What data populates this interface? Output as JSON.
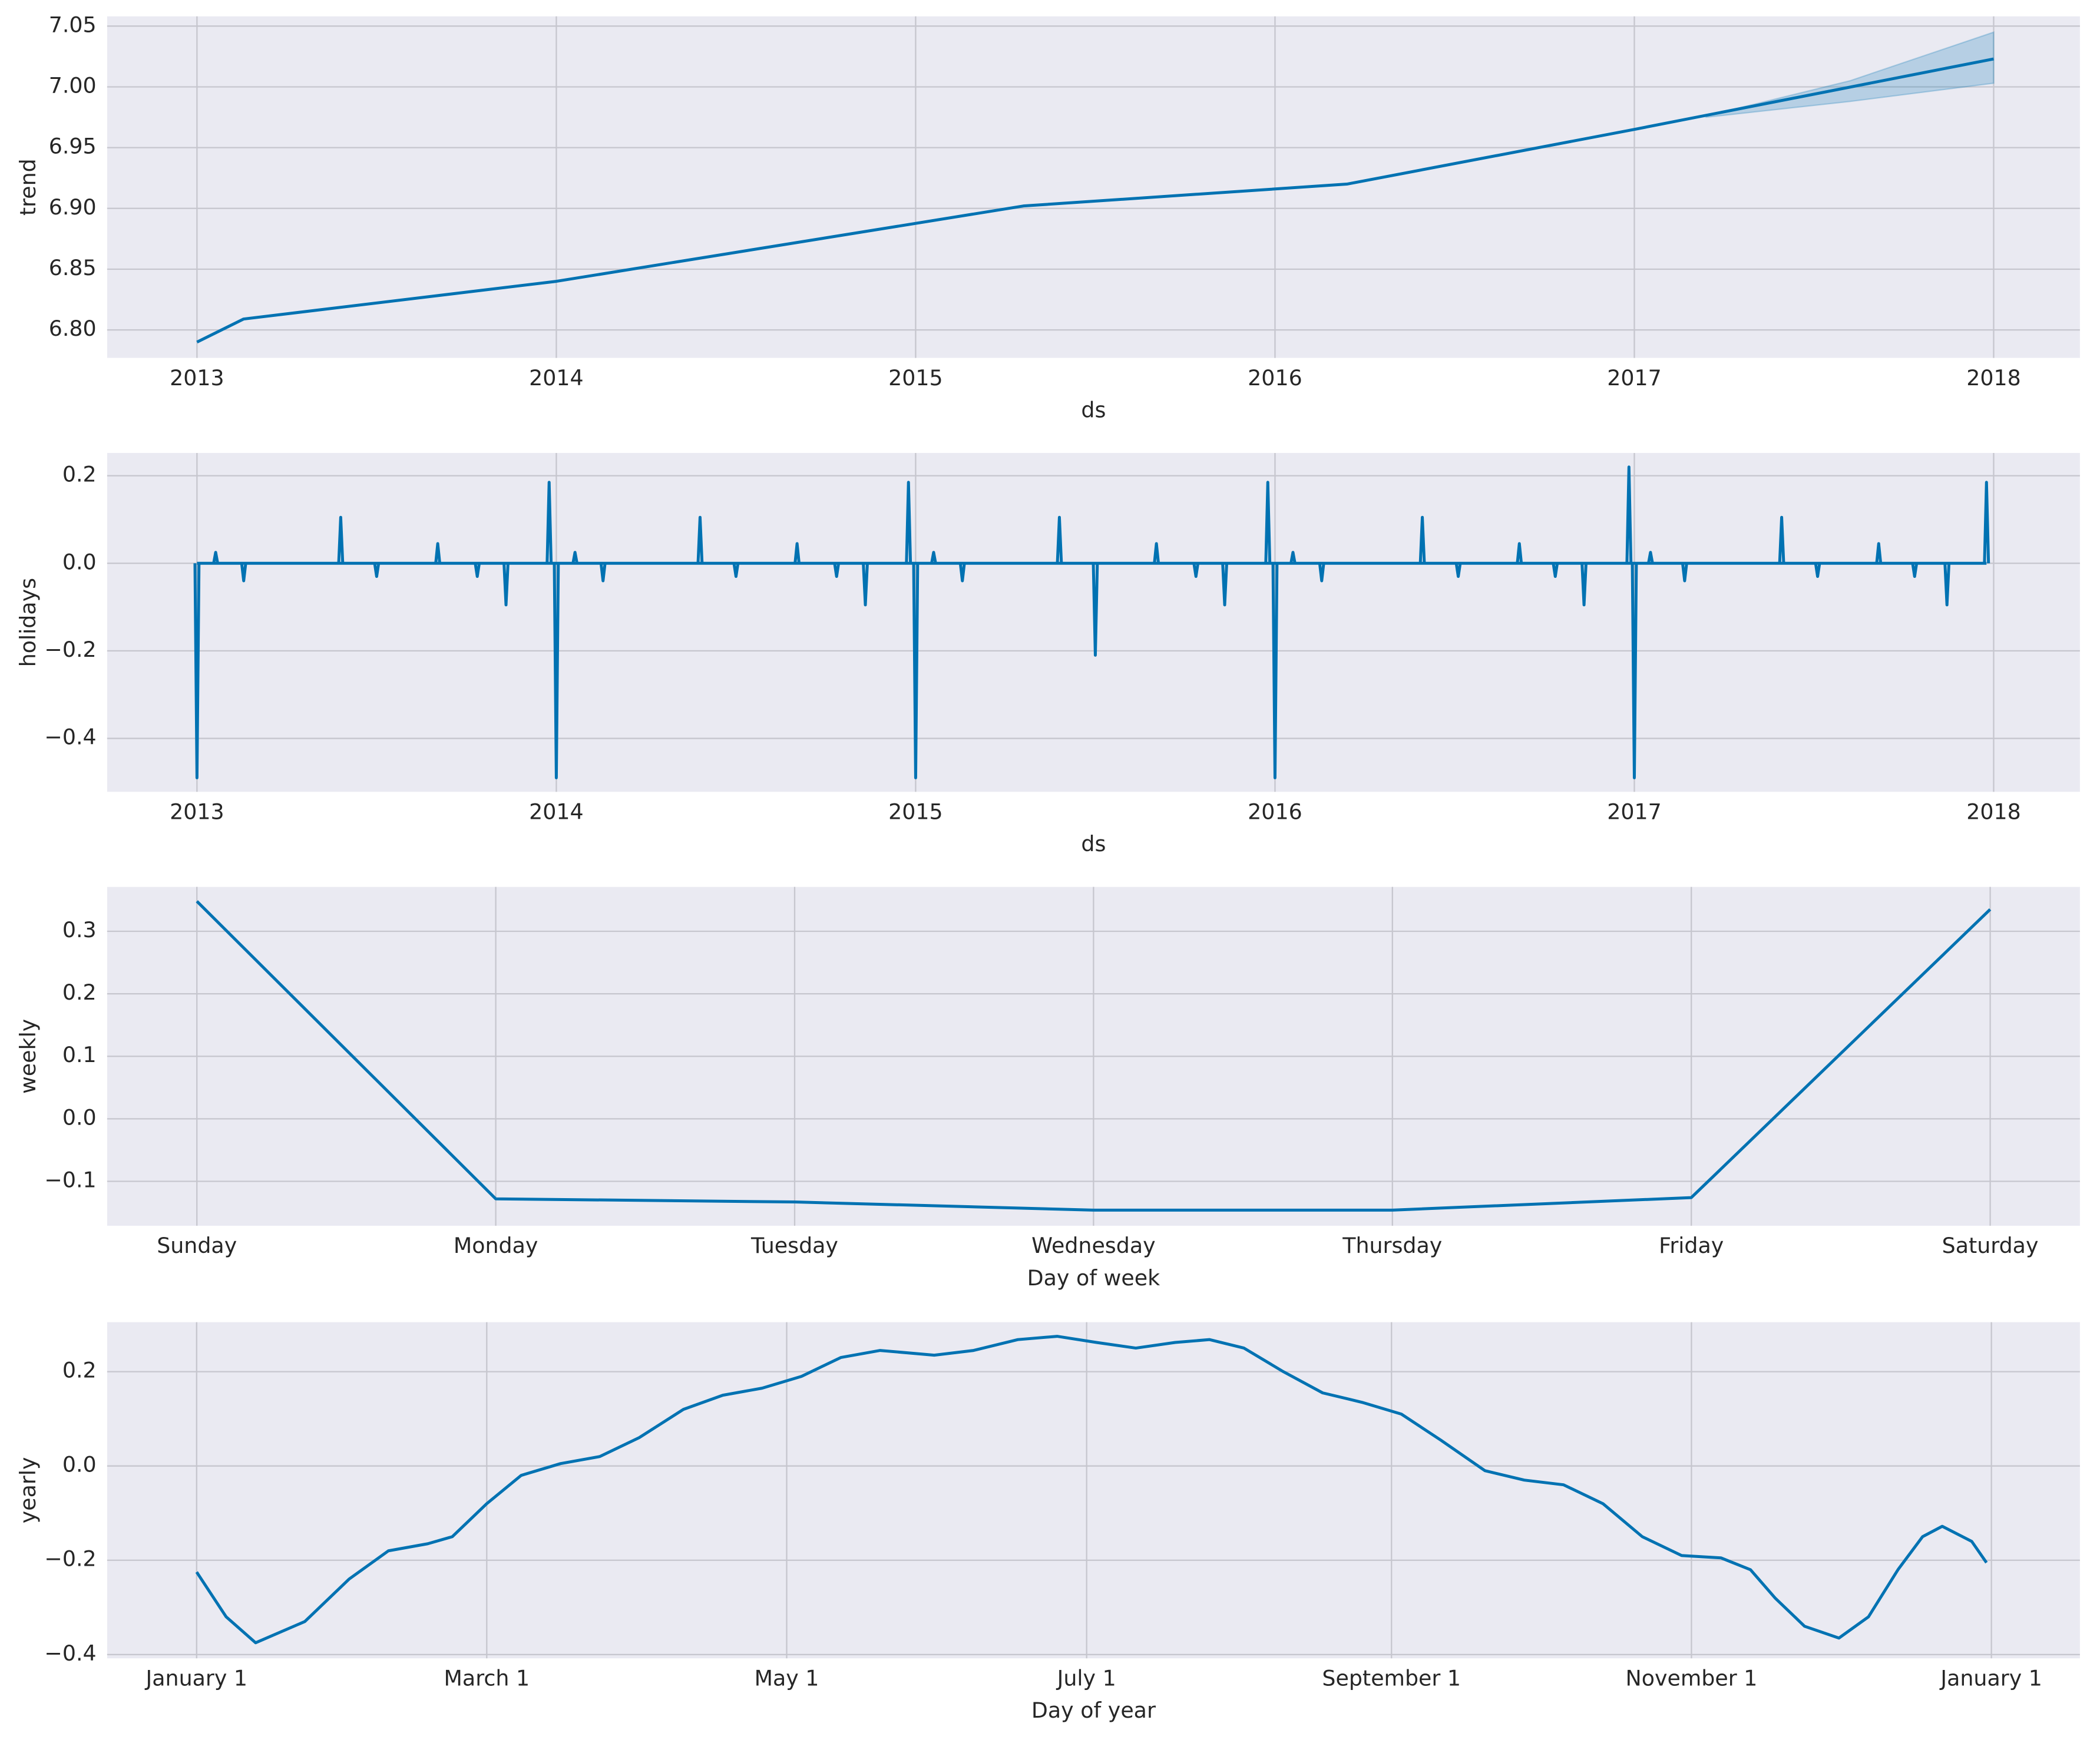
{
  "chart_data": [
    {
      "type": "line",
      "ylabel": "trend",
      "xlabel": "ds",
      "color": "#0072b2",
      "grid": true,
      "x": [
        2013.0,
        2013.13,
        2014.0,
        2015.3,
        2016.2,
        2017.0,
        2018.0
      ],
      "values": [
        6.79,
        6.809,
        6.84,
        6.902,
        6.92,
        6.965,
        7.023
      ],
      "interval": {
        "x": [
          2017.2,
          2017.6,
          2018.0
        ],
        "lower": [
          6.975,
          6.988,
          7.003
        ],
        "upper": [
          6.976,
          7.005,
          7.045
        ]
      },
      "xlim": [
        2012.75,
        2018.24
      ],
      "xticks": [
        2013,
        2014,
        2015,
        2016,
        2017,
        2018
      ],
      "ylim": [
        6.777,
        7.058
      ],
      "yticks": [
        {
          "value": 6.8,
          "label": "6.80"
        },
        6.85,
        {
          "value": 6.9,
          "label": "6.90"
        },
        6.95,
        {
          "value": 7,
          "label": "7.00"
        },
        7.05
      ]
    },
    {
      "type": "spike",
      "ylabel": "holidays",
      "xlabel": "ds",
      "color": "#0072b2",
      "grid": true,
      "x": [
        2013.0,
        2013.052,
        2013.13,
        2013.4,
        2013.5,
        2013.67,
        2013.78,
        2013.86,
        2013.98,
        2014.0,
        2014.052,
        2014.13,
        2014.4,
        2014.5,
        2014.67,
        2014.78,
        2014.86,
        2014.98,
        2015.0,
        2015.05,
        2015.13,
        2015.4,
        2015.5,
        2015.67,
        2015.78,
        2015.86,
        2015.98,
        2016.0,
        2016.05,
        2016.13,
        2016.41,
        2016.51,
        2016.68,
        2016.78,
        2016.86,
        2016.985,
        2017.0,
        2017.045,
        2017.14,
        2017.41,
        2017.51,
        2017.68,
        2017.78,
        2017.87,
        2017.98
      ],
      "values": [
        -0.49,
        0.025,
        -0.04,
        0.105,
        -0.03,
        0.045,
        -0.03,
        -0.095,
        0.185,
        -0.49,
        0.025,
        -0.04,
        0.105,
        -0.03,
        0.045,
        -0.03,
        -0.095,
        0.185,
        -0.49,
        0.025,
        -0.04,
        0.105,
        -0.21,
        0.045,
        -0.03,
        -0.095,
        0.185,
        -0.49,
        0.025,
        -0.04,
        0.105,
        -0.03,
        0.045,
        -0.03,
        -0.095,
        0.22,
        -0.49,
        0.025,
        -0.04,
        0.105,
        -0.03,
        0.045,
        -0.03,
        -0.095,
        0.185
      ],
      "xlim": [
        2012.75,
        2018.24
      ],
      "xticks": [
        2013,
        2014,
        2015,
        2016,
        2017,
        2018
      ],
      "ylim": [
        -0.522,
        0.252
      ],
      "yticks": [
        {
          "value": -0.4,
          "label": "−0.4"
        },
        {
          "value": -0.2,
          "label": "−0.2"
        },
        {
          "value": 0,
          "label": "0.0"
        },
        0.2
      ]
    },
    {
      "type": "line",
      "ylabel": "weekly",
      "xlabel": "Day of week",
      "color": "#0072b2",
      "grid": true,
      "categories": [
        "Sunday",
        "Monday",
        "Tuesday",
        "Wednesday",
        "Thursday",
        "Friday",
        "Saturday"
      ],
      "values": [
        0.348,
        -0.128,
        -0.133,
        -0.146,
        -0.146,
        -0.126,
        0.335
      ],
      "ylim": [
        -0.171,
        0.371
      ],
      "yticks": [
        {
          "value": -0.1,
          "label": "−0.1"
        },
        {
          "value": 0,
          "label": "0.0"
        },
        0.1,
        0.2,
        0.3
      ]
    },
    {
      "type": "line",
      "ylabel": "yearly",
      "xlabel": "Day of year",
      "color": "#0072b2",
      "grid": true,
      "x": [
        0,
        6,
        12,
        22,
        31,
        39,
        47,
        52,
        59,
        66,
        74,
        82,
        90,
        99,
        107,
        115,
        123,
        131,
        139,
        150,
        158,
        167,
        175,
        183,
        191,
        199,
        206,
        213,
        221,
        229,
        237,
        245,
        253,
        262,
        270,
        278,
        286,
        294,
        302,
        310,
        316,
        321,
        327,
        334,
        340,
        346,
        351,
        355,
        361,
        364
      ],
      "values": [
        -0.225,
        -0.32,
        -0.375,
        -0.33,
        -0.24,
        -0.18,
        -0.165,
        -0.15,
        -0.08,
        -0.02,
        0.005,
        0.02,
        0.06,
        0.12,
        0.15,
        0.165,
        0.19,
        0.23,
        0.245,
        0.235,
        0.245,
        0.268,
        0.275,
        0.262,
        0.25,
        0.262,
        0.268,
        0.25,
        0.2,
        0.155,
        0.135,
        0.11,
        0.055,
        -0.01,
        -0.03,
        -0.04,
        -0.08,
        -0.15,
        -0.19,
        -0.195,
        -0.22,
        -0.28,
        -0.34,
        -0.365,
        -0.32,
        -0.22,
        -0.15,
        -0.128,
        -0.16,
        -0.205
      ],
      "xlim": [
        -18.2,
        383
      ],
      "xticks": [
        {
          "value": 0,
          "label": "January 1"
        },
        {
          "value": 59,
          "label": "March 1"
        },
        {
          "value": 120,
          "label": "May 1"
        },
        {
          "value": 181,
          "label": "July 1"
        },
        {
          "value": 243,
          "label": "September 1"
        },
        {
          "value": 304,
          "label": "November 1"
        },
        {
          "value": 365,
          "label": "January 1"
        }
      ],
      "ylim": [
        -0.408,
        0.305
      ],
      "yticks": [
        {
          "value": -0.4,
          "label": "−0.4"
        },
        {
          "value": -0.2,
          "label": "−0.2"
        },
        {
          "value": 0,
          "label": "0.0"
        },
        0.2
      ]
    }
  ]
}
